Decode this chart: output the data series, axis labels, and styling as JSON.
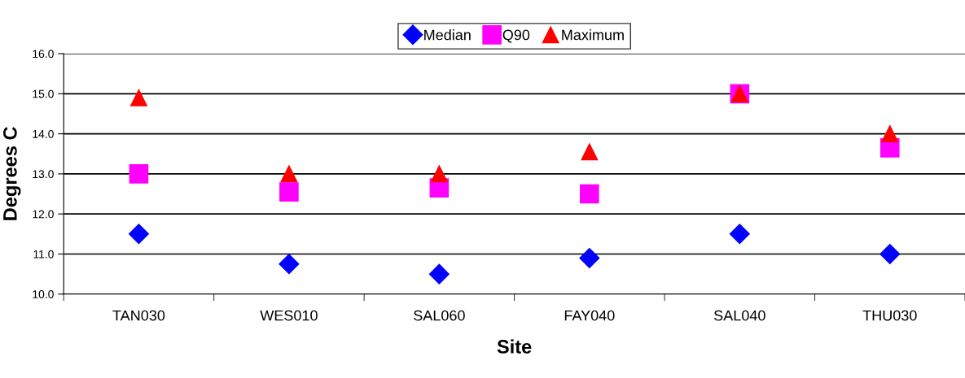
{
  "chart_data": {
    "type": "scatter",
    "xlabel": "Site",
    "ylabel": "Degrees C",
    "categories": [
      "TAN030",
      "WES010",
      "SAL060",
      "FAY040",
      "SAL040",
      "THU030"
    ],
    "series": [
      {
        "name": "Median",
        "color": "#0000ff",
        "marker": "diamond",
        "values": [
          11.5,
          10.75,
          10.5,
          10.9,
          11.5,
          11.0
        ]
      },
      {
        "name": "Q90",
        "color": "#ff00ff",
        "marker": "square",
        "values": [
          13.0,
          12.55,
          12.65,
          12.5,
          15.0,
          13.65
        ]
      },
      {
        "name": "Maximum",
        "color": "#ff0000",
        "marker": "triangle",
        "values": [
          14.9,
          13.0,
          13.0,
          13.55,
          15.0,
          14.0
        ]
      }
    ],
    "ylim": [
      10,
      16
    ],
    "yticks": [
      {
        "value": 10,
        "label": "10.0"
      },
      {
        "value": 11,
        "label": "11.0"
      },
      {
        "value": 12,
        "label": "12.0"
      },
      {
        "value": 13,
        "label": "13.0"
      },
      {
        "value": 14,
        "label": "14.0"
      },
      {
        "value": 15,
        "label": "15.0"
      },
      {
        "value": 16,
        "label": "16.0"
      }
    ],
    "grid": "y",
    "legend": "top"
  }
}
